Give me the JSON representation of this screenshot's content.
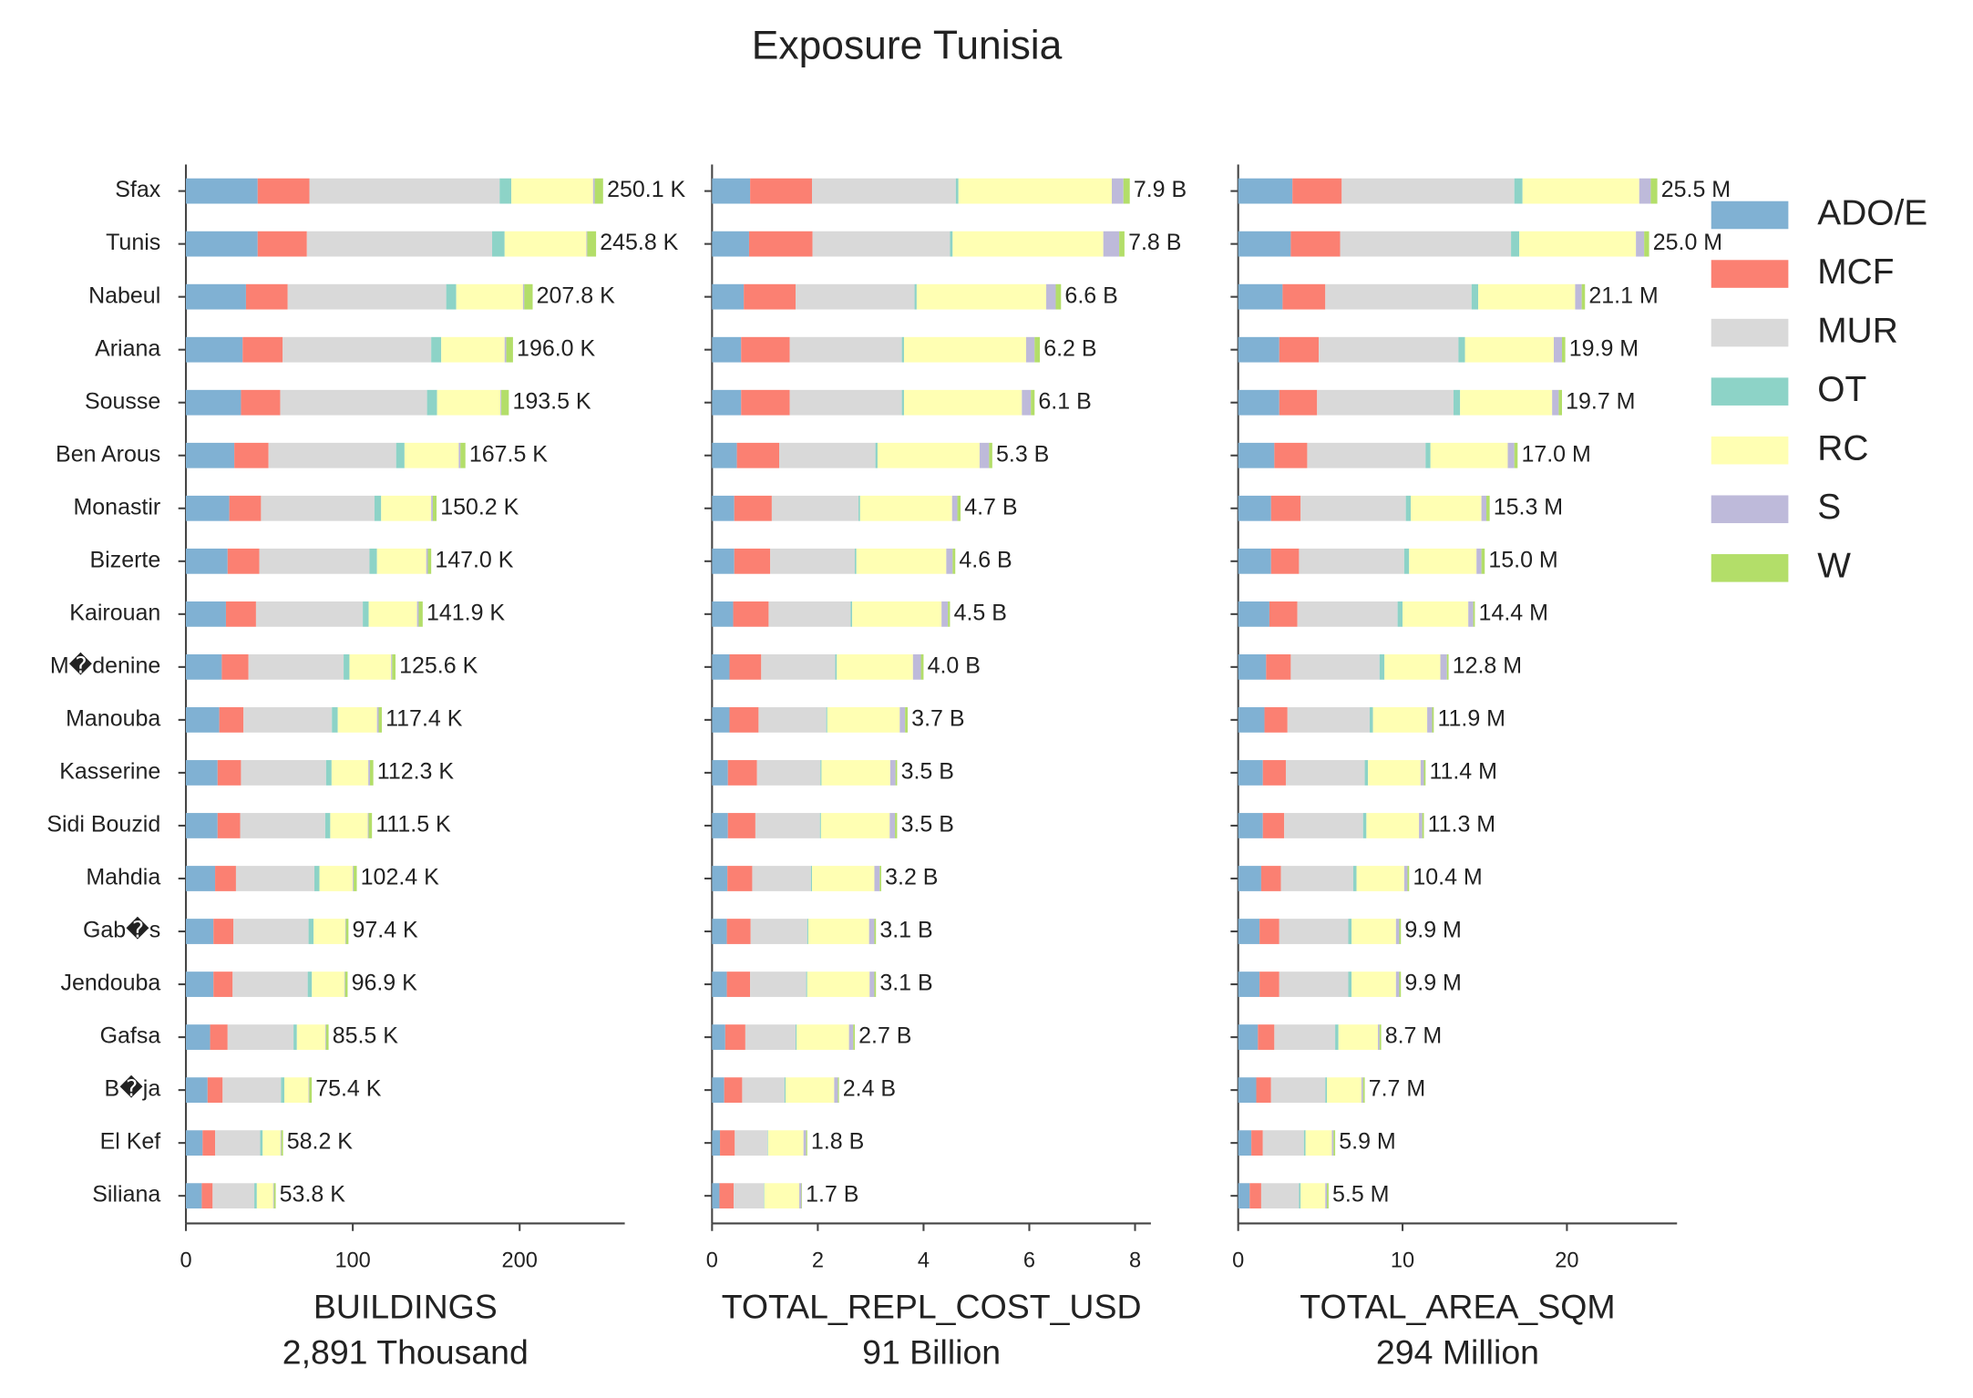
{
  "chart_data": {
    "type": "bar",
    "orientation": "horizontal",
    "stacked": true,
    "title": "Exposure Tunisia",
    "categories": [
      "Sfax",
      "Tunis",
      "Nabeul",
      "Ariana",
      "Sousse",
      "Ben Arous",
      "Monastir",
      "Bizerte",
      "Kairouan",
      "M�denine",
      "Manouba",
      "Kasserine",
      "Sidi Bouzid",
      "Mahdia",
      "Gab�s",
      "Jendouba",
      "Gafsa",
      "B�ja",
      "El Kef",
      "Siliana"
    ],
    "series": [
      {
        "name": "ADO/E",
        "color": "#80b1d3"
      },
      {
        "name": "MCF",
        "color": "#fb8072"
      },
      {
        "name": "MUR",
        "color": "#d9d9d9"
      },
      {
        "name": "OT",
        "color": "#8dd3c7"
      },
      {
        "name": "RC",
        "color": "#ffffb3"
      },
      {
        "name": "S",
        "color": "#bebada"
      },
      {
        "name": "W",
        "color": "#b3de69"
      }
    ],
    "panels": [
      {
        "xlabel": "BUILDINGS",
        "sublabel": "2,891 Thousand",
        "xlim": [
          0,
          263
        ],
        "xticks": [
          0,
          100,
          200
        ],
        "segments": [
          [
            43,
            43,
            36,
            34,
            33,
            29,
            26,
            25,
            24,
            21.5,
            20,
            19,
            19,
            17.5,
            16.5,
            16.5,
            14.5,
            13,
            10,
            9.5
          ],
          [
            31,
            29.5,
            25,
            24,
            23.5,
            20.5,
            19,
            19,
            18,
            16,
            14.5,
            14,
            13.5,
            12.5,
            12,
            11.5,
            10.5,
            9,
            7.5,
            6.5
          ],
          [
            114,
            111,
            95,
            89,
            88,
            76.5,
            68,
            66,
            64,
            57,
            53,
            51,
            51,
            47,
            45,
            45,
            39.5,
            35,
            27,
            25
          ],
          [
            7,
            7.5,
            6,
            6,
            6,
            5,
            4,
            4.5,
            3.5,
            3.5,
            3.5,
            3.3,
            3,
            3,
            3,
            2.5,
            2,
            2,
            1.5,
            1.5
          ],
          [
            49,
            49,
            40,
            38,
            38,
            32.5,
            30,
            29.5,
            29,
            25,
            23.5,
            22,
            22.5,
            20,
            19,
            19.5,
            17,
            14.5,
            10.7,
            9.8
          ],
          [
            1,
            0.5,
            0.8,
            1,
            0.5,
            1,
            1,
            1,
            1,
            0.6,
            1,
            1,
            0.5,
            0.5,
            0.4,
            0.4,
            0.5,
            0.4,
            0.5,
            0.5
          ],
          [
            5,
            5.3,
            5,
            4,
            4.5,
            3,
            2.2,
            2,
            2.4,
            2,
            1.9,
            2,
            2,
            1.9,
            1.5,
            1.5,
            1.5,
            1.5,
            1,
            1
          ]
        ],
        "totals": [
          250.1,
          245.8,
          207.8,
          196.0,
          193.5,
          167.5,
          150.2,
          147.0,
          141.9,
          125.6,
          117.4,
          112.3,
          111.5,
          102.4,
          97.4,
          96.9,
          85.5,
          75.4,
          58.2,
          53.8
        ],
        "total_labels": [
          "250.1 K",
          "245.8 K",
          "207.8 K",
          "196.0 K",
          "193.5 K",
          "167.5 K",
          "150.2 K",
          "147.0 K",
          "141.9 K",
          "125.6 K",
          "117.4 K",
          "112.3 K",
          "111.5 K",
          "102.4 K",
          "97.4 K",
          "96.9 K",
          "85.5 K",
          "75.4 K",
          "58.2 K",
          "53.8 K"
        ]
      },
      {
        "xlabel": "TOTAL_REPL_COST_USD",
        "sublabel": "91 Billion",
        "xlim": [
          0,
          8.3
        ],
        "xticks": [
          0,
          2,
          4,
          6,
          8
        ],
        "segments": [
          [
            0.72,
            0.7,
            0.6,
            0.55,
            0.55,
            0.47,
            0.42,
            0.42,
            0.4,
            0.33,
            0.33,
            0.3,
            0.3,
            0.29,
            0.28,
            0.28,
            0.25,
            0.23,
            0.15,
            0.14
          ],
          [
            1.17,
            1.2,
            0.98,
            0.92,
            0.92,
            0.8,
            0.71,
            0.68,
            0.67,
            0.6,
            0.55,
            0.55,
            0.52,
            0.47,
            0.45,
            0.44,
            0.38,
            0.34,
            0.28,
            0.27
          ],
          [
            2.72,
            2.6,
            2.25,
            2.12,
            2.12,
            1.82,
            1.64,
            1.6,
            1.55,
            1.4,
            1.28,
            1.2,
            1.22,
            1.11,
            1.07,
            1.06,
            0.95,
            0.8,
            0.62,
            0.57
          ],
          [
            0.05,
            0.05,
            0.04,
            0.04,
            0.04,
            0.04,
            0.03,
            0.03,
            0.03,
            0.03,
            0.02,
            0.02,
            0.02,
            0.02,
            0.02,
            0.02,
            0.02,
            0.02,
            0.01,
            0.01
          ],
          [
            2.9,
            2.85,
            2.45,
            2.31,
            2.23,
            1.93,
            1.74,
            1.7,
            1.69,
            1.44,
            1.37,
            1.3,
            1.3,
            1.18,
            1.15,
            1.18,
            0.99,
            0.92,
            0.67,
            0.66
          ],
          [
            0.22,
            0.3,
            0.18,
            0.16,
            0.17,
            0.18,
            0.1,
            0.12,
            0.12,
            0.15,
            0.1,
            0.1,
            0.1,
            0.1,
            0.1,
            0.09,
            0.08,
            0.07,
            0.05,
            0.04
          ],
          [
            0.12,
            0.1,
            0.1,
            0.1,
            0.07,
            0.06,
            0.06,
            0.05,
            0.04,
            0.05,
            0.05,
            0.03,
            0.04,
            0.03,
            0.03,
            0.03,
            0.03,
            0.02,
            0.02,
            0.01
          ]
        ],
        "totals": [
          7.9,
          7.8,
          6.6,
          6.2,
          6.1,
          5.3,
          4.7,
          4.6,
          4.5,
          4.0,
          3.7,
          3.5,
          3.5,
          3.2,
          3.1,
          3.1,
          2.7,
          2.4,
          1.8,
          1.7
        ],
        "total_labels": [
          "7.9 B",
          "7.8 B",
          "6.6 B",
          "6.2 B",
          "6.1 B",
          "5.3 B",
          "4.7 B",
          "4.6 B",
          "4.5 B",
          "4.0 B",
          "3.7 B",
          "3.5 B",
          "3.5 B",
          "3.2 B",
          "3.1 B",
          "3.1 B",
          "2.7 B",
          "2.4 B",
          "1.8 B",
          "1.7 B"
        ]
      },
      {
        "xlabel": "TOTAL_AREA_SQM",
        "sublabel": "294 Million",
        "xlim": [
          0,
          26.7
        ],
        "xticks": [
          0,
          10,
          20
        ],
        "segments": [
          [
            3.3,
            3.2,
            2.7,
            2.5,
            2.5,
            2.2,
            2.0,
            2.0,
            1.9,
            1.7,
            1.6,
            1.5,
            1.5,
            1.4,
            1.3,
            1.3,
            1.2,
            1.1,
            0.8,
            0.7
          ],
          [
            3.0,
            3.0,
            2.6,
            2.4,
            2.3,
            2.0,
            1.8,
            1.7,
            1.7,
            1.5,
            1.4,
            1.4,
            1.3,
            1.2,
            1.2,
            1.2,
            1.0,
            0.9,
            0.7,
            0.7
          ],
          [
            10.5,
            10.4,
            8.9,
            8.5,
            8.3,
            7.2,
            6.4,
            6.4,
            6.1,
            5.4,
            5.0,
            4.8,
            4.8,
            4.4,
            4.2,
            4.2,
            3.7,
            3.3,
            2.5,
            2.3
          ],
          [
            0.5,
            0.5,
            0.4,
            0.4,
            0.4,
            0.3,
            0.3,
            0.3,
            0.3,
            0.3,
            0.2,
            0.2,
            0.2,
            0.2,
            0.2,
            0.2,
            0.2,
            0.1,
            0.1,
            0.1
          ],
          [
            7.1,
            7.1,
            5.9,
            5.4,
            5.6,
            4.7,
            4.3,
            4.1,
            4.0,
            3.4,
            3.3,
            3.2,
            3.2,
            2.9,
            2.7,
            2.7,
            2.4,
            2.1,
            1.6,
            1.5
          ],
          [
            0.7,
            0.5,
            0.4,
            0.5,
            0.4,
            0.4,
            0.3,
            0.3,
            0.3,
            0.4,
            0.3,
            0.2,
            0.2,
            0.2,
            0.2,
            0.2,
            0.1,
            0.1,
            0.1,
            0.1
          ],
          [
            0.4,
            0.3,
            0.2,
            0.2,
            0.2,
            0.2,
            0.2,
            0.2,
            0.1,
            0.1,
            0.1,
            0.1,
            0.1,
            0.1,
            0.1,
            0.1,
            0.1,
            0.1,
            0.1,
            0.1
          ]
        ],
        "totals": [
          25.5,
          25.0,
          21.1,
          19.9,
          19.7,
          17.0,
          15.3,
          15.0,
          14.4,
          12.8,
          11.9,
          11.4,
          11.3,
          10.4,
          9.9,
          9.9,
          8.7,
          7.7,
          5.9,
          5.5
        ],
        "total_labels": [
          "25.5 M",
          "25.0 M",
          "21.1 M",
          "19.9 M",
          "19.7 M",
          "17.0 M",
          "15.3 M",
          "15.0 M",
          "14.4 M",
          "12.8 M",
          "11.9 M",
          "11.4 M",
          "11.3 M",
          "10.4 M",
          "9.9 M",
          "9.9 M",
          "8.7 M",
          "7.7 M",
          "5.9 M",
          "5.5 M"
        ]
      }
    ]
  }
}
